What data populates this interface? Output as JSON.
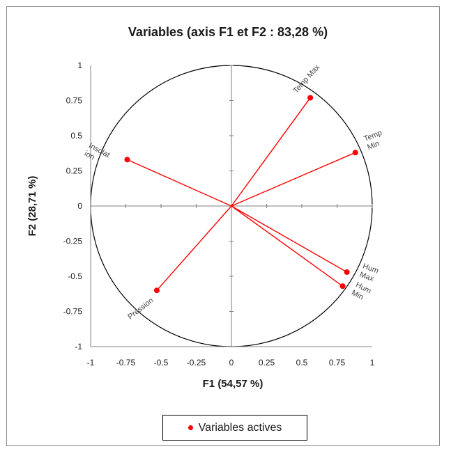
{
  "chart_data": {
    "type": "scatter",
    "subtype": "correlation-circle",
    "title": "Variables (axis F1  et F2 : 83,28 %)",
    "xlabel": "F1 (54,57 %)",
    "ylabel": "F2 (28,71 %)",
    "xlim": [
      -1,
      1
    ],
    "ylim": [
      -1,
      1
    ],
    "x_ticks": [
      "-1",
      "-0.75",
      "-0.5",
      "-0.25",
      "0",
      "0.25",
      "0.5",
      "0.75",
      "1"
    ],
    "y_ticks": [
      "1",
      "0.75",
      "0.5",
      "0.25",
      "0",
      "-0.25",
      "-0.5",
      "-0.75",
      "-1"
    ],
    "grid": false,
    "unit_circle": true,
    "legend_position": "bottom",
    "series": [
      {
        "name": "Variables actives",
        "color": "#ff0000",
        "points": [
          {
            "label": "Temp Max",
            "x": 0.56,
            "y": 0.77
          },
          {
            "label": "Temp Min",
            "x": 0.88,
            "y": 0.38
          },
          {
            "label": "Insolation",
            "x": -0.74,
            "y": 0.33
          },
          {
            "label": "Hum Max",
            "x": 0.82,
            "y": -0.47
          },
          {
            "label": "Hum Min",
            "x": 0.79,
            "y": -0.57
          },
          {
            "label": "Pression",
            "x": -0.53,
            "y": -0.6
          }
        ]
      }
    ],
    "point_labels": [
      {
        "text": "Temp  Max",
        "lines": [
          "Temp  Max"
        ]
      },
      {
        "text": "Temp Min",
        "lines": [
          "Temp",
          "Min"
        ]
      },
      {
        "text": "Insolation",
        "lines": [
          "Insolat",
          "ion"
        ]
      },
      {
        "text": "Hum Max",
        "lines": [
          "Hum",
          "Max"
        ]
      },
      {
        "text": "Hum Min",
        "lines": [
          "Hum",
          "Min"
        ]
      },
      {
        "text": "Pression",
        "lines": [
          "Pression"
        ]
      }
    ]
  }
}
